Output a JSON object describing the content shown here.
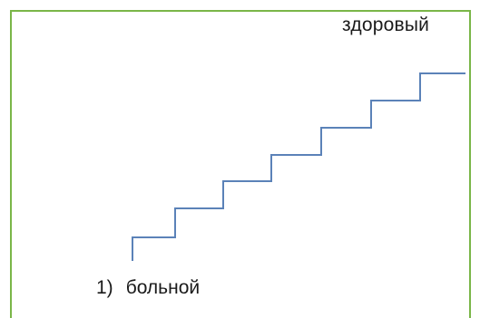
{
  "diagram": {
    "top_label": "здоровый",
    "bottom_label_number": "1)",
    "bottom_label_text": "больной",
    "line_color": "#5b82b8",
    "border_color": "#7ab648",
    "steps_count": 7
  }
}
